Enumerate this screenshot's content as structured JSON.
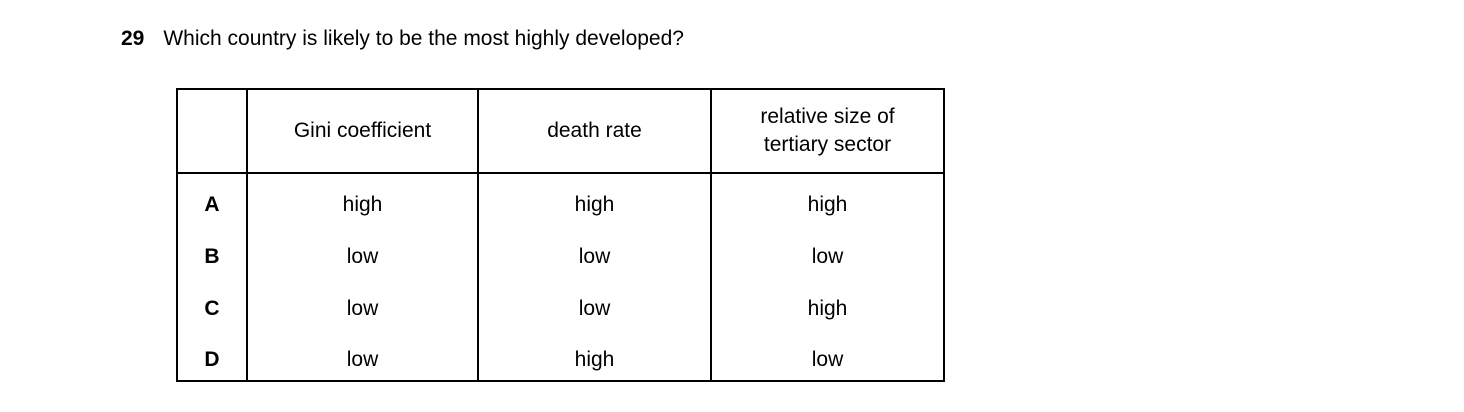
{
  "question": {
    "number": "29",
    "text": "Which country is likely to be the most highly developed?"
  },
  "table": {
    "headers": {
      "option": "",
      "gini": "Gini coefficient",
      "death_rate": "death rate",
      "tertiary": "relative size of\ntertiary sector"
    },
    "rows": [
      {
        "option": "A",
        "values": [
          "high",
          "high",
          "high"
        ]
      },
      {
        "option": "B",
        "values": [
          "low",
          "low",
          "low"
        ]
      },
      {
        "option": "C",
        "values": [
          "low",
          "low",
          "high"
        ]
      },
      {
        "option": "D",
        "values": [
          "low",
          "high",
          "low"
        ]
      }
    ]
  },
  "colors": {
    "text": "#000000",
    "background": "#ffffff",
    "table_border": "#000000"
  }
}
